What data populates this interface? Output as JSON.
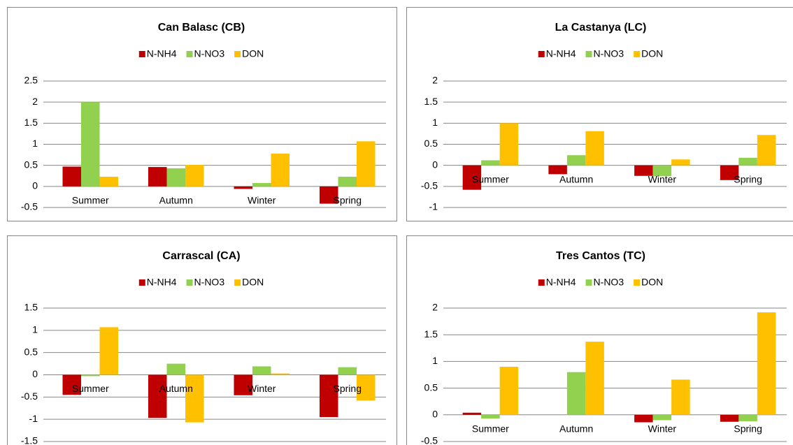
{
  "chart_data": [
    {
      "type": "bar",
      "title": "Can Balasc (CB)",
      "categories": [
        "Summer",
        "Autumn",
        "Winter",
        "Spring"
      ],
      "series": [
        {
          "name": "N-NH4",
          "color": "#c00000",
          "values": [
            0.47,
            0.46,
            -0.06,
            -0.41
          ]
        },
        {
          "name": "N-NO3",
          "color": "#92d050",
          "values": [
            2.0,
            0.43,
            0.08,
            0.23
          ]
        },
        {
          "name": "DON",
          "color": "#ffc000",
          "values": [
            0.23,
            0.51,
            0.78,
            1.07
          ]
        }
      ],
      "ylim": [
        -0.5,
        2.5
      ],
      "yticks": [
        -0.5,
        0,
        0.5,
        1,
        1.5,
        2,
        2.5
      ],
      "grid": true,
      "legend": "top"
    },
    {
      "type": "bar",
      "title": "La Castanya (LC)",
      "categories": [
        "Summer",
        "Autumn",
        "Winter",
        "Spring"
      ],
      "series": [
        {
          "name": "N-NH4",
          "color": "#c00000",
          "values": [
            -0.58,
            -0.21,
            -0.25,
            -0.35
          ]
        },
        {
          "name": "N-NO3",
          "color": "#92d050",
          "values": [
            0.12,
            0.24,
            -0.26,
            0.18
          ]
        },
        {
          "name": "DON",
          "color": "#ffc000",
          "values": [
            1.0,
            0.81,
            0.14,
            0.72
          ]
        }
      ],
      "ylim": [
        -1,
        2
      ],
      "yticks": [
        -1,
        -0.5,
        0,
        0.5,
        1,
        1.5,
        2
      ],
      "grid": true,
      "legend": "top"
    },
    {
      "type": "bar",
      "title": "Carrascal (CA)",
      "categories": [
        "Summer",
        "Autumn",
        "Winter",
        "Spring"
      ],
      "series": [
        {
          "name": "N-NH4",
          "color": "#c00000",
          "values": [
            -0.45,
            -0.97,
            -0.46,
            -0.95
          ]
        },
        {
          "name": "N-NO3",
          "color": "#92d050",
          "values": [
            -0.03,
            0.25,
            0.19,
            0.17
          ]
        },
        {
          "name": "DON",
          "color": "#ffc000",
          "values": [
            1.07,
            -1.07,
            0.03,
            -0.58
          ]
        }
      ],
      "ylim": [
        -1.5,
        1.5
      ],
      "yticks": [
        -1.5,
        -1,
        -0.5,
        0,
        0.5,
        1,
        1.5
      ],
      "grid": true,
      "legend": "top"
    },
    {
      "type": "bar",
      "title": "Tres Cantos (TC)",
      "categories": [
        "Summer",
        "Autumn",
        "Winter",
        "Spring"
      ],
      "series": [
        {
          "name": "N-NH4",
          "color": "#c00000",
          "values": [
            0.04,
            0,
            -0.14,
            -0.13
          ]
        },
        {
          "name": "N-NO3",
          "color": "#92d050",
          "values": [
            -0.07,
            0.8,
            -0.1,
            -0.12
          ]
        },
        {
          "name": "DON",
          "color": "#ffc000",
          "values": [
            0.9,
            1.37,
            0.66,
            1.92
          ]
        }
      ],
      "ylim": [
        -0.5,
        2
      ],
      "yticks": [
        -0.5,
        0,
        0.5,
        1,
        1.5,
        2
      ],
      "grid": true,
      "legend": "top"
    }
  ]
}
